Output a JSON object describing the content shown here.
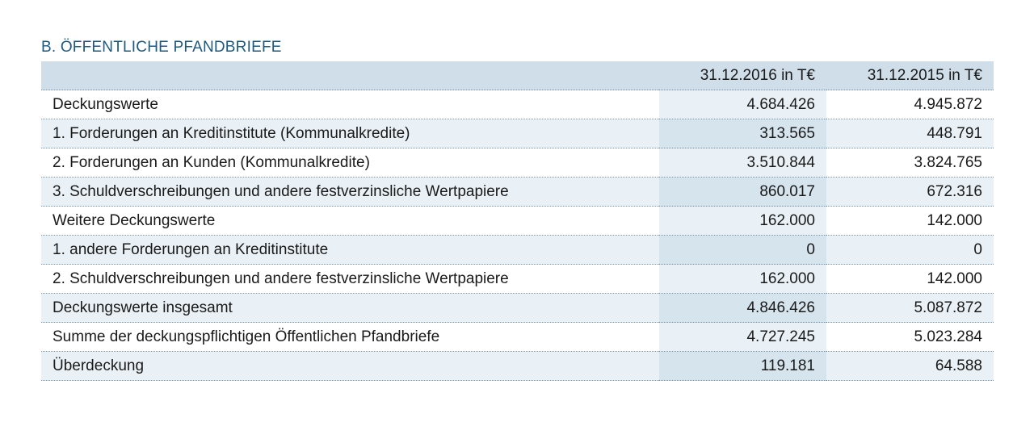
{
  "section": {
    "title": "B. ÖFFENTLICHE PFANDBRIEFE"
  },
  "table": {
    "header": {
      "label": "",
      "col_2016": "31.12.2016 in T€",
      "col_2015": "31.12.2015 in T€"
    },
    "rows": [
      {
        "label": "Deckungswerte",
        "v2016": "4.684.426",
        "v2015": "4.945.872"
      },
      {
        "label": "1. Forderungen an Kreditinstitute (Kommunalkredite)",
        "v2016": "313.565",
        "v2015": "448.791"
      },
      {
        "label": "2. Forderungen an Kunden (Kommunalkredite)",
        "v2016": "3.510.844",
        "v2015": "3.824.765"
      },
      {
        "label": "3. Schuldverschreibungen und andere festverzinsliche Wertpapiere",
        "v2016": "860.017",
        "v2015": "672.316"
      },
      {
        "label": "Weitere Deckungswerte",
        "v2016": "162.000",
        "v2015": "142.000"
      },
      {
        "label": "1. andere Forderungen an Kreditinstitute",
        "v2016": "0",
        "v2015": "0"
      },
      {
        "label": "2. Schuldverschreibungen und andere festverzinsliche Wertpapiere",
        "v2016": "162.000",
        "v2015": "142.000"
      },
      {
        "label": "Deckungswerte insgesamt",
        "v2016": "4.846.426",
        "v2015": "5.087.872"
      },
      {
        "label": "Summe der deckungspflichtigen Öffentlichen Pfandbriefe",
        "v2016": "4.727.245",
        "v2015": "5.023.284"
      },
      {
        "label": "Überdeckung",
        "v2016": "119.181",
        "v2015": "64.588"
      }
    ]
  },
  "colors": {
    "title": "#1d5a7e",
    "header_bg": "#cfdee8",
    "stripe_light": "#eaf1f6",
    "stripe_dark": "#d6e4ee",
    "rule": "#6f93ac"
  }
}
